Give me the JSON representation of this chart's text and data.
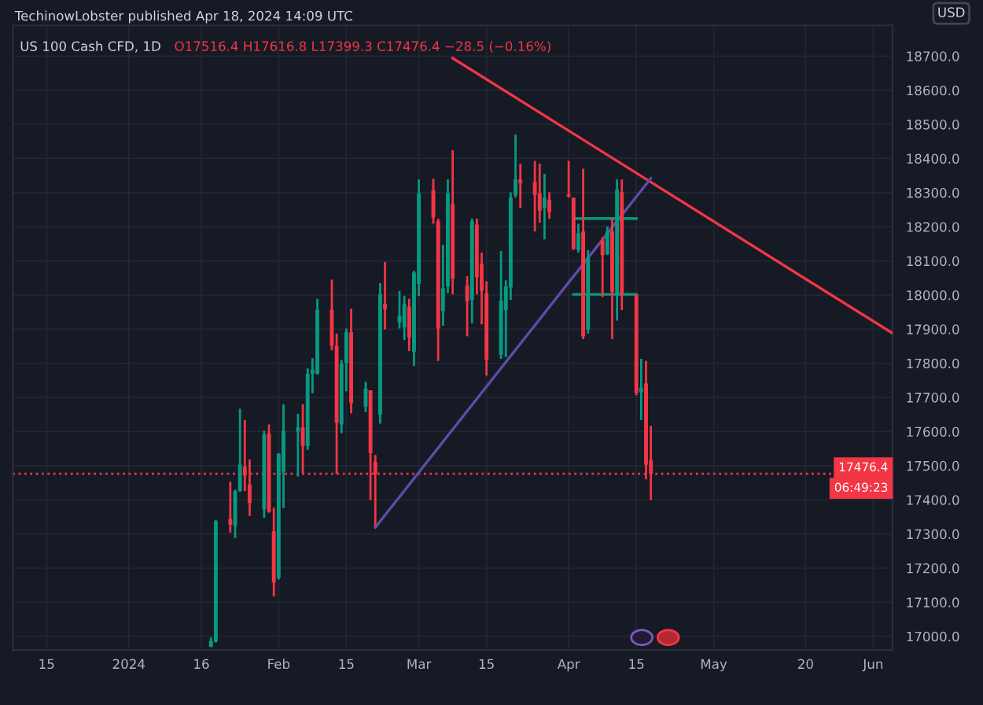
{
  "chart_data": {
    "type": "candlestick",
    "title": "US 100 Cash CFD, 1D",
    "subtitle": "O17516.4 H17616.8 L17399.3 C17476.4 −28.5 (−0.16%)",
    "x": [
      "2024-01-18",
      "2024-01-19",
      "2024-01-22",
      "2024-01-23",
      "2024-01-24",
      "2024-01-25",
      "2024-01-26",
      "2024-01-29",
      "2024-01-30",
      "2024-01-31",
      "2024-02-01",
      "2024-02-02",
      "2024-02-05",
      "2024-02-06",
      "2024-02-07",
      "2024-02-08",
      "2024-02-09",
      "2024-02-12",
      "2024-02-13",
      "2024-02-14",
      "2024-02-15",
      "2024-02-16",
      "2024-02-19",
      "2024-02-20",
      "2024-02-21",
      "2024-02-22",
      "2024-02-23",
      "2024-02-26",
      "2024-02-27",
      "2024-02-28",
      "2024-02-29",
      "2024-03-01",
      "2024-03-04",
      "2024-03-05",
      "2024-03-06",
      "2024-03-07",
      "2024-03-08",
      "2024-03-11",
      "2024-03-12",
      "2024-03-13",
      "2024-03-14",
      "2024-03-15",
      "2024-03-18",
      "2024-03-19",
      "2024-03-20",
      "2024-03-21",
      "2024-03-22",
      "2024-03-25",
      "2024-03-26",
      "2024-03-27",
      "2024-03-28",
      "2024-04-01",
      "2024-04-02",
      "2024-04-03",
      "2024-04-04",
      "2024-04-05",
      "2024-04-08",
      "2024-04-09",
      "2024-04-10",
      "2024-04-11",
      "2024-04-12",
      "2024-04-15",
      "2024-04-16",
      "2024-04-17",
      "2024-04-18"
    ],
    "ohlc": [
      [
        16969,
        16997,
        16969,
        16986
      ],
      [
        16985,
        17341,
        16982,
        17337
      ],
      [
        17344,
        17453,
        17304,
        17327
      ],
      [
        17324,
        17430,
        17288,
        17426
      ],
      [
        17426,
        17667,
        17423,
        17503
      ],
      [
        17497,
        17634,
        17426,
        17471
      ],
      [
        17445,
        17518,
        17353,
        17391
      ],
      [
        17373,
        17603,
        17347,
        17592
      ],
      [
        17594,
        17621,
        17362,
        17365
      ],
      [
        17308,
        17377,
        17117,
        17158
      ],
      [
        17172,
        17537,
        17166,
        17534
      ],
      [
        17482,
        17680,
        17376,
        17603
      ],
      [
        17600,
        17652,
        17468,
        17612
      ],
      [
        17612,
        17680,
        17476,
        17558
      ],
      [
        17558,
        17785,
        17546,
        17769
      ],
      [
        17770,
        17815,
        17712,
        17782
      ],
      [
        17770,
        17989,
        17767,
        17957
      ],
      [
        17957,
        18045,
        17838,
        17851
      ],
      [
        17851,
        17887,
        17476,
        17626
      ],
      [
        17621,
        17810,
        17595,
        17799
      ],
      [
        17801,
        17902,
        17718,
        17891
      ],
      [
        17891,
        17960,
        17653,
        17683
      ],
      [
        17673,
        17746,
        17657,
        17726
      ],
      [
        17721,
        17721,
        17399,
        17537
      ],
      [
        17511,
        17531,
        17322,
        17476
      ],
      [
        17650,
        18035,
        17623,
        18003
      ],
      [
        17974,
        18097,
        17899,
        17959
      ],
      [
        17920,
        18012,
        17902,
        17939
      ],
      [
        17905,
        17997,
        17868,
        17974
      ],
      [
        17966,
        17989,
        17836,
        17876
      ],
      [
        17834,
        18071,
        17792,
        18066
      ],
      [
        18032,
        18339,
        17997,
        18298
      ],
      [
        18307,
        18341,
        18209,
        18227
      ],
      [
        18216,
        18224,
        17807,
        17902
      ],
      [
        17953,
        18147,
        17910,
        18020
      ],
      [
        18025,
        18339,
        18006,
        18298
      ],
      [
        18267,
        18424,
        18002,
        18048
      ],
      [
        18028,
        18055,
        17879,
        17982
      ],
      [
        17986,
        18224,
        17917,
        18216
      ],
      [
        18206,
        18224,
        18002,
        18052
      ],
      [
        18091,
        18124,
        17914,
        18012
      ],
      [
        18006,
        18040,
        17764,
        17810
      ],
      [
        17825,
        18129,
        17813,
        17983
      ],
      [
        17956,
        18043,
        17818,
        18025
      ],
      [
        18022,
        18301,
        17986,
        18286
      ],
      [
        18293,
        18470,
        18286,
        18339
      ],
      [
        18339,
        18385,
        18255,
        18328
      ],
      [
        18331,
        18393,
        18186,
        18293
      ],
      [
        18298,
        18385,
        18212,
        18247
      ],
      [
        18255,
        18355,
        18163,
        18286
      ],
      [
        18278,
        18301,
        18224,
        18243
      ],
      [
        18295,
        18393,
        18286,
        18289
      ],
      [
        18286,
        18286,
        18132,
        18135
      ],
      [
        18132,
        18209,
        18124,
        18181
      ],
      [
        18186,
        18370,
        17871,
        17879
      ],
      [
        17899,
        18132,
        17887,
        18109
      ],
      [
        18160,
        18170,
        17994,
        18117
      ],
      [
        18120,
        18201,
        18117,
        18186
      ],
      [
        18186,
        18224,
        17871,
        18009
      ],
      [
        18002,
        18339,
        17925,
        18309
      ],
      [
        18301,
        18339,
        17956,
        18002
      ],
      [
        18002,
        18002,
        17706,
        17713
      ],
      [
        17715,
        17813,
        17634,
        17729
      ],
      [
        17741,
        17807,
        17460,
        17503
      ],
      [
        17516.4,
        17616.8,
        17399.3,
        17476.4
      ]
    ],
    "series": [
      {
        "type": "line",
        "color": "#f23645",
        "x": [
          "2024-03-08",
          "2024-06-07"
        ],
        "values": [
          18694,
          17888
        ]
      },
      {
        "type": "line",
        "color": "#5e4ca8",
        "x": [
          "2024-02-21",
          "2024-04-18"
        ],
        "values": [
          17319,
          18342
        ]
      },
      {
        "type": "line",
        "color": "#089981",
        "x": [
          "2024-04-02",
          "2024-04-15"
        ],
        "values": [
          18224,
          18224
        ]
      },
      {
        "type": "line",
        "color": "#089981",
        "x": [
          "2024-04-02",
          "2024-04-15"
        ],
        "values": [
          18002,
          18002
        ]
      }
    ],
    "xlim": [
      "2023-12-08",
      "2024-06-07"
    ],
    "xticks": [
      {
        "value": "2023-12-15",
        "label": "15"
      },
      {
        "value": "2024-01-01",
        "label": "2024"
      },
      {
        "value": "2024-01-16",
        "label": "16"
      },
      {
        "value": "2024-02-01",
        "label": "Feb"
      },
      {
        "value": "2024-02-15",
        "label": "15"
      },
      {
        "value": "2024-03-01",
        "label": "Mar"
      },
      {
        "value": "2024-03-15",
        "label": "15"
      },
      {
        "value": "2024-04-01",
        "label": "Apr"
      },
      {
        "value": "2024-04-15",
        "label": "15"
      },
      {
        "value": "2024-05-01",
        "label": "May"
      },
      {
        "value": "2024-05-20",
        "label": "20"
      },
      {
        "value": "2024-06-03",
        "label": "Jun"
      }
    ],
    "ylim": [
      16960,
      18790
    ],
    "yticks": [
      {
        "value": 17000,
        "label": "17000.0"
      },
      {
        "value": 17100,
        "label": "17100.0"
      },
      {
        "value": 17200,
        "label": "17200.0"
      },
      {
        "value": 17300,
        "label": "17300.0"
      },
      {
        "value": 17400,
        "label": "17400.0"
      },
      {
        "value": 17500,
        "label": "17500.0"
      },
      {
        "value": 17600,
        "label": "17600.0"
      },
      {
        "value": 17700,
        "label": "17700.0"
      },
      {
        "value": 17800,
        "label": "17800.0"
      },
      {
        "value": 17900,
        "label": "17900.0"
      },
      {
        "value": 18000,
        "label": "18000.0"
      },
      {
        "value": 18100,
        "label": "18100.0"
      },
      {
        "value": 18200,
        "label": "18200.0"
      },
      {
        "value": 18300,
        "label": "18300.0"
      },
      {
        "value": 18400,
        "label": "18400.0"
      },
      {
        "value": 18500,
        "label": "18500.0"
      },
      {
        "value": 18600,
        "label": "18600.0"
      },
      {
        "value": 18700,
        "label": "18700.0"
      }
    ],
    "ref_lines": [
      {
        "axis": "y",
        "value": 17476.4,
        "label": "17476.4",
        "color": "#f23645",
        "line_style": "dotted"
      }
    ],
    "annotations": [
      "TechinowLobster published Apr 18, 2024 14:09 UTC",
      "USD",
      "06:49:23"
    ],
    "grid": true
  }
}
